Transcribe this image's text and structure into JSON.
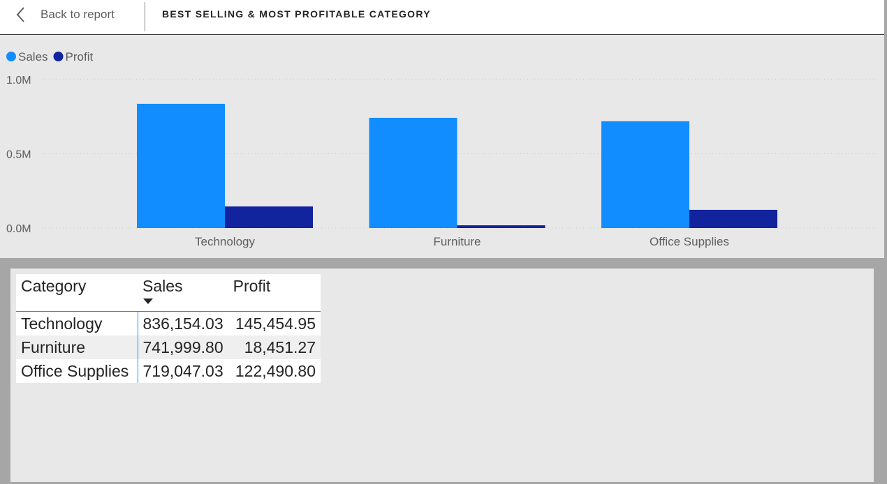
{
  "header": {
    "back_label": "Back to report",
    "title": "BEST SELLING & MOST PROFITABLE CATEGORY"
  },
  "colors": {
    "sales": "#118dff",
    "profit": "#12239e",
    "background": "#e8e8e8",
    "frame": "#a6a6a6"
  },
  "chart_data": {
    "type": "bar",
    "categories": [
      "Technology",
      "Furniture",
      "Office Supplies"
    ],
    "series": [
      {
        "name": "Sales",
        "values": [
          836154.03,
          741999.8,
          719047.03
        ]
      },
      {
        "name": "Profit",
        "values": [
          145454.95,
          18451.27,
          122490.8
        ]
      }
    ],
    "ylim": [
      0,
      1000000
    ],
    "yticks": [
      {
        "value": 0,
        "label": "0.0M"
      },
      {
        "value": 500000,
        "label": "0.5M"
      },
      {
        "value": 1000000,
        "label": "1.0M"
      }
    ],
    "grid": true,
    "legend_position": "top-left"
  },
  "table": {
    "columns": [
      "Category",
      "Sales",
      "Profit"
    ],
    "sorted_column": "Sales",
    "rows": [
      [
        "Technology",
        "836,154.03",
        "145,454.95"
      ],
      [
        "Furniture",
        "741,999.80",
        "18,451.27"
      ],
      [
        "Office Supplies",
        "719,047.03",
        "122,490.80"
      ]
    ]
  }
}
